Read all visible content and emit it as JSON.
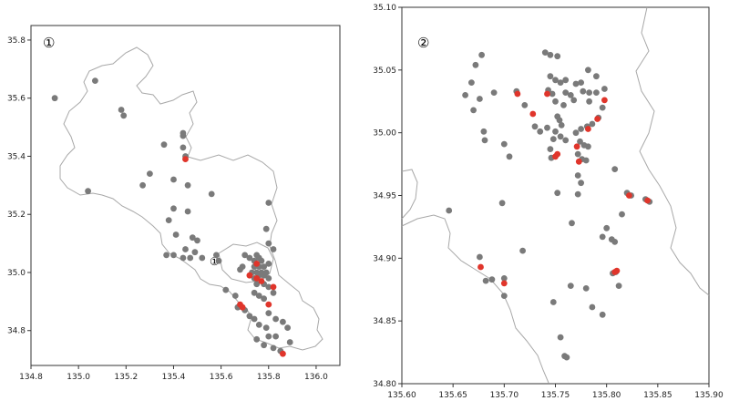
{
  "colors": {
    "gray_point": "#7a7a7a",
    "red_point": "#e0352b",
    "border": "#a8a8a8",
    "frame": "#333333"
  },
  "chart_data": [
    {
      "type": "scatter",
      "panel_label": "①",
      "inset_marker": "①",
      "xlim": [
        134.8,
        136.1
      ],
      "ylim": [
        34.68,
        35.85
      ],
      "xticks": [
        "134.8",
        "135.0",
        "135.2",
        "135.4",
        "135.6",
        "135.8",
        "136.0"
      ],
      "yticks": [
        "34.8",
        "35.0",
        "35.2",
        "35.4",
        "35.6",
        "35.8"
      ],
      "series": [
        {
          "color_key": "gray",
          "points": [
            [
              134.9,
              35.6
            ],
            [
              135.07,
              35.66
            ],
            [
              135.18,
              35.56
            ],
            [
              135.19,
              35.54
            ],
            [
              135.36,
              35.44
            ],
            [
              135.44,
              35.48
            ],
            [
              135.44,
              35.47
            ],
            [
              135.44,
              35.43
            ],
            [
              135.45,
              35.4
            ],
            [
              135.04,
              35.28
            ],
            [
              135.3,
              35.34
            ],
            [
              135.4,
              35.32
            ],
            [
              135.46,
              35.3
            ],
            [
              135.27,
              35.3
            ],
            [
              135.56,
              35.27
            ],
            [
              135.4,
              35.22
            ],
            [
              135.46,
              35.21
            ],
            [
              135.38,
              35.18
            ],
            [
              135.41,
              35.13
            ],
            [
              135.48,
              35.12
            ],
            [
              135.5,
              35.11
            ],
            [
              135.45,
              35.08
            ],
            [
              135.49,
              35.07
            ],
            [
              135.4,
              35.06
            ],
            [
              135.44,
              35.05
            ],
            [
              135.47,
              35.05
            ],
            [
              135.37,
              35.06
            ],
            [
              135.52,
              35.05
            ],
            [
              135.58,
              35.06
            ],
            [
              135.59,
              35.04
            ],
            [
              135.8,
              35.24
            ],
            [
              135.79,
              35.15
            ],
            [
              135.8,
              35.1
            ],
            [
              135.82,
              35.08
            ],
            [
              135.7,
              35.06
            ],
            [
              135.72,
              35.05
            ],
            [
              135.74,
              35.04
            ],
            [
              135.75,
              35.06
            ],
            [
              135.76,
              35.05
            ],
            [
              135.77,
              35.04
            ],
            [
              135.74,
              35.02
            ],
            [
              135.76,
              35.02
            ],
            [
              135.78,
              35.02
            ],
            [
              135.8,
              35.03
            ],
            [
              135.73,
              35.0
            ],
            [
              135.75,
              35.0
            ],
            [
              135.77,
              35.0
            ],
            [
              135.79,
              35.0
            ],
            [
              135.76,
              34.99
            ],
            [
              135.78,
              34.99
            ],
            [
              135.74,
              34.98
            ],
            [
              135.8,
              34.98
            ],
            [
              135.69,
              35.02
            ],
            [
              135.68,
              35.01
            ],
            [
              135.75,
              34.96
            ],
            [
              135.78,
              34.96
            ],
            [
              135.8,
              34.95
            ],
            [
              135.74,
              34.93
            ],
            [
              135.76,
              34.92
            ],
            [
              135.78,
              34.91
            ],
            [
              135.82,
              34.93
            ],
            [
              135.66,
              34.92
            ],
            [
              135.62,
              34.94
            ],
            [
              135.67,
              34.88
            ],
            [
              135.7,
              34.87
            ],
            [
              135.72,
              34.85
            ],
            [
              135.74,
              34.84
            ],
            [
              135.76,
              34.82
            ],
            [
              135.79,
              34.81
            ],
            [
              135.83,
              34.84
            ],
            [
              135.86,
              34.83
            ],
            [
              135.88,
              34.81
            ],
            [
              135.8,
              34.78
            ],
            [
              135.83,
              34.78
            ],
            [
              135.75,
              34.77
            ],
            [
              135.78,
              34.75
            ],
            [
              135.82,
              34.74
            ],
            [
              135.85,
              34.73
            ],
            [
              135.89,
              34.76
            ],
            [
              135.8,
              34.86
            ]
          ]
        },
        {
          "color_key": "red",
          "points": [
            [
              135.45,
              35.39
            ],
            [
              135.75,
              35.03
            ],
            [
              135.75,
              34.98
            ],
            [
              135.77,
              34.97
            ],
            [
              135.72,
              34.99
            ],
            [
              135.82,
              34.95
            ],
            [
              135.68,
              34.89
            ],
            [
              135.69,
              34.88
            ],
            [
              135.8,
              34.89
            ],
            [
              135.86,
              34.72
            ]
          ]
        }
      ]
    },
    {
      "type": "scatter",
      "panel_label": "②",
      "xlim": [
        135.6,
        135.9
      ],
      "ylim": [
        34.8,
        35.1
      ],
      "xticks": [
        "135.60",
        "135.65",
        "135.70",
        "135.75",
        "135.80",
        "135.85",
        "135.90"
      ],
      "yticks": [
        "34.80",
        "34.85",
        "34.90",
        "34.95",
        "35.00",
        "35.05",
        "35.10"
      ],
      "series": [
        {
          "color_key": "gray",
          "points": [
            [
              135.678,
              35.062
            ],
            [
              135.672,
              35.054
            ],
            [
              135.668,
              35.04
            ],
            [
              135.662,
              35.03
            ],
            [
              135.676,
              35.027
            ],
            [
              135.67,
              35.018
            ],
            [
              135.69,
              35.032
            ],
            [
              135.712,
              35.033
            ],
            [
              135.72,
              35.022
            ],
            [
              135.74,
              35.064
            ],
            [
              135.745,
              35.062
            ],
            [
              135.752,
              35.061
            ],
            [
              135.745,
              35.045
            ],
            [
              135.75,
              35.042
            ],
            [
              135.755,
              35.04
            ],
            [
              135.76,
              35.042
            ],
            [
              135.77,
              35.039
            ],
            [
              135.775,
              35.04
            ],
            [
              135.777,
              35.033
            ],
            [
              135.783,
              35.032
            ],
            [
              135.79,
              35.032
            ],
            [
              135.743,
              35.034
            ],
            [
              135.747,
              35.031
            ],
            [
              135.76,
              35.032
            ],
            [
              135.765,
              35.03
            ],
            [
              135.768,
              35.026
            ],
            [
              135.75,
              35.025
            ],
            [
              135.758,
              35.022
            ],
            [
              135.783,
              35.025
            ],
            [
              135.752,
              35.013
            ],
            [
              135.754,
              35.01
            ],
            [
              135.756,
              35.006
            ],
            [
              135.75,
              35.001
            ],
            [
              135.755,
              34.997
            ],
            [
              135.76,
              34.994
            ],
            [
              135.77,
              35.0
            ],
            [
              135.775,
              35.003
            ],
            [
              135.781,
              35.005
            ],
            [
              135.786,
              35.007
            ],
            [
              135.774,
              34.993
            ],
            [
              135.778,
              34.99
            ],
            [
              135.782,
              34.989
            ],
            [
              135.772,
              34.983
            ],
            [
              135.776,
              34.979
            ],
            [
              135.78,
              34.978
            ],
            [
              135.772,
              34.966
            ],
            [
              135.775,
              34.96
            ],
            [
              135.772,
              34.951
            ],
            [
              135.748,
              34.995
            ],
            [
              135.745,
              34.987
            ],
            [
              135.746,
              34.98
            ],
            [
              135.742,
              35.004
            ],
            [
              135.735,
              35.001
            ],
            [
              135.73,
              35.005
            ],
            [
              135.7,
              34.991
            ],
            [
              135.705,
              34.981
            ],
            [
              135.68,
              35.001
            ],
            [
              135.681,
              34.994
            ],
            [
              135.676,
              34.901
            ],
            [
              135.682,
              34.882
            ],
            [
              135.698,
              34.944
            ],
            [
              135.718,
              34.906
            ],
            [
              135.7,
              34.884
            ],
            [
              135.7,
              34.87
            ],
            [
              135.646,
              34.938
            ],
            [
              135.688,
              34.883
            ],
            [
              135.748,
              34.865
            ],
            [
              135.755,
              34.837
            ],
            [
              135.759,
              34.822
            ],
            [
              135.761,
              34.821
            ],
            [
              135.766,
              34.928
            ],
            [
              135.752,
              34.952
            ],
            [
              135.782,
              35.05
            ],
            [
              135.798,
              35.035
            ],
            [
              135.808,
              34.971
            ],
            [
              135.805,
              34.915
            ],
            [
              135.808,
              34.913
            ],
            [
              135.8,
              34.924
            ],
            [
              135.796,
              34.917
            ],
            [
              135.815,
              34.935
            ],
            [
              135.812,
              34.878
            ],
            [
              135.806,
              34.888
            ],
            [
              135.809,
              34.889
            ],
            [
              135.796,
              34.855
            ],
            [
              135.786,
              34.861
            ],
            [
              135.78,
              34.876
            ],
            [
              135.765,
              34.878
            ],
            [
              135.82,
              34.952
            ],
            [
              135.824,
              34.95
            ],
            [
              135.838,
              34.947
            ],
            [
              135.842,
              34.945
            ],
            [
              135.79,
              35.045
            ],
            [
              135.796,
              35.02
            ],
            [
              135.792,
              35.012
            ]
          ]
        },
        {
          "color_key": "red",
          "points": [
            [
              135.713,
              35.031
            ],
            [
              135.728,
              35.015
            ],
            [
              135.742,
              35.031
            ],
            [
              135.75,
              34.981
            ],
            [
              135.752,
              34.983
            ],
            [
              135.771,
              34.989
            ],
            [
              135.773,
              34.977
            ],
            [
              135.782,
              35.003
            ],
            [
              135.791,
              35.011
            ],
            [
              135.798,
              35.026
            ],
            [
              135.677,
              34.893
            ],
            [
              135.7,
              34.88
            ],
            [
              135.81,
              34.89
            ],
            [
              135.808,
              34.889
            ],
            [
              135.822,
              34.95
            ],
            [
              135.84,
              34.946
            ]
          ]
        }
      ]
    }
  ]
}
